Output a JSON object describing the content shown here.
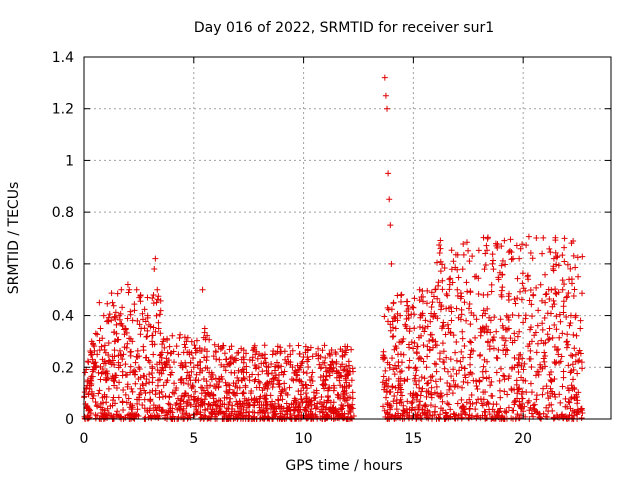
{
  "chart_data": {
    "type": "scatter",
    "title": "Day 016 of 2022, SRMTID for receiver sur1",
    "xlabel": "GPS time / hours",
    "ylabel": "SRMTID / TECUs",
    "xlim": [
      0,
      24
    ],
    "ylim": [
      0,
      1.4
    ],
    "x_ticks": [
      0,
      5,
      10,
      15,
      20
    ],
    "x_tick_labels": [
      "0",
      "5",
      "10",
      "15",
      "20"
    ],
    "y_ticks": [
      0,
      0.2,
      0.4,
      0.6,
      0.8,
      1.0,
      1.2,
      1.4
    ],
    "y_tick_labels": [
      "0",
      "0.2",
      "0.4",
      "0.6",
      "0.8",
      "1",
      "1.2",
      "1.4"
    ],
    "grid": true,
    "marker": "+",
    "series": [
      {
        "name": "SRMTID",
        "color": "#e00000",
        "description": "Dense scatter of many thousands of points; representative subset listed",
        "x": [
          0.05,
          0.1,
          0.15,
          0.2,
          0.3,
          0.35,
          0.4,
          0.5,
          0.6,
          0.7,
          0.75,
          0.8,
          0.9,
          1.0,
          1.1,
          1.2,
          1.3,
          1.4,
          1.5,
          1.6,
          1.7,
          1.8,
          1.9,
          2.0,
          2.1,
          2.2,
          2.3,
          2.4,
          2.5,
          2.6,
          2.7,
          2.8,
          2.9,
          3.0,
          3.1,
          3.2,
          3.25,
          3.3,
          3.4,
          3.5,
          3.6,
          3.7,
          3.8,
          3.9,
          4.0,
          4.1,
          4.2,
          4.3,
          4.4,
          4.5,
          4.6,
          4.7,
          4.8,
          4.9,
          5.0,
          5.1,
          5.2,
          5.3,
          5.4,
          5.5,
          5.6,
          5.7,
          5.8,
          5.9,
          6.0,
          6.1,
          6.2,
          6.3,
          6.4,
          6.6,
          6.8,
          7.0,
          7.2,
          7.4,
          7.6,
          7.8,
          8.0,
          8.2,
          8.4,
          8.6,
          8.8,
          9.0,
          9.2,
          9.4,
          9.6,
          9.8,
          10.0,
          10.2,
          10.4,
          10.6,
          10.8,
          11.0,
          11.2,
          11.4,
          11.6,
          11.8,
          12.0,
          12.2,
          13.7,
          13.75,
          13.8,
          13.85,
          13.9,
          13.95,
          14.0,
          14.1,
          14.2,
          14.3,
          14.4,
          14.5,
          14.6,
          14.7,
          14.8,
          15.0,
          15.2,
          15.4,
          15.6,
          15.8,
          16.0,
          16.2,
          16.4,
          16.6,
          16.8,
          17.0,
          17.2,
          17.4,
          17.6,
          17.8,
          18.0,
          18.2,
          18.4,
          18.6,
          18.8,
          19.0,
          19.2,
          19.4,
          19.6,
          19.8,
          20.0,
          20.2,
          20.4,
          20.6,
          20.8,
          21.0,
          21.2,
          21.4,
          21.6,
          21.8,
          22.0,
          22.2,
          22.4,
          22.5,
          22.6
        ],
        "y": [
          0.18,
          0.12,
          0.05,
          0.22,
          0.15,
          0.3,
          0.08,
          0.2,
          0.25,
          0.45,
          0.35,
          0.28,
          0.4,
          0.15,
          0.38,
          0.22,
          0.45,
          0.3,
          0.12,
          0.4,
          0.5,
          0.25,
          0.35,
          0.52,
          0.18,
          0.3,
          0.42,
          0.5,
          0.2,
          0.35,
          0.28,
          0.1,
          0.4,
          0.22,
          0.3,
          0.58,
          0.62,
          0.45,
          0.35,
          0.25,
          0.3,
          0.2,
          0.15,
          0.28,
          0.18,
          0.22,
          0.12,
          0.25,
          0.15,
          0.2,
          0.1,
          0.18,
          0.25,
          0.12,
          0.2,
          0.15,
          0.08,
          0.22,
          0.5,
          0.35,
          0.12,
          0.18,
          0.1,
          0.08,
          0.12,
          0.05,
          0.03,
          0.0,
          0.02,
          0.1,
          0.22,
          0.05,
          0.15,
          0.18,
          0.1,
          0.25,
          0.08,
          0.12,
          0.2,
          0.05,
          0.15,
          0.18,
          0.1,
          0.22,
          0.08,
          0.15,
          0.12,
          0.05,
          0.18,
          0.1,
          0.2,
          0.15,
          0.25,
          0.12,
          0.18,
          0.1,
          0.28,
          0.15,
          1.32,
          1.25,
          1.2,
          0.95,
          0.85,
          0.75,
          0.6,
          0.45,
          0.35,
          0.25,
          0.4,
          0.3,
          0.15,
          0.35,
          0.2,
          0.1,
          0.28,
          0.4,
          0.2,
          0.15,
          0.3,
          0.45,
          0.22,
          0.35,
          0.1,
          0.5,
          0.2,
          0.38,
          0.25,
          0.55,
          0.15,
          0.42,
          0.3,
          0.6,
          0.18,
          0.48,
          0.25,
          0.65,
          0.2,
          0.4,
          0.15,
          0.55,
          0.3,
          0.7,
          0.2,
          0.45,
          0.35,
          0.62,
          0.25,
          0.5,
          0.3,
          0.68,
          0.4,
          0.55,
          0.35
        ]
      }
    ]
  }
}
